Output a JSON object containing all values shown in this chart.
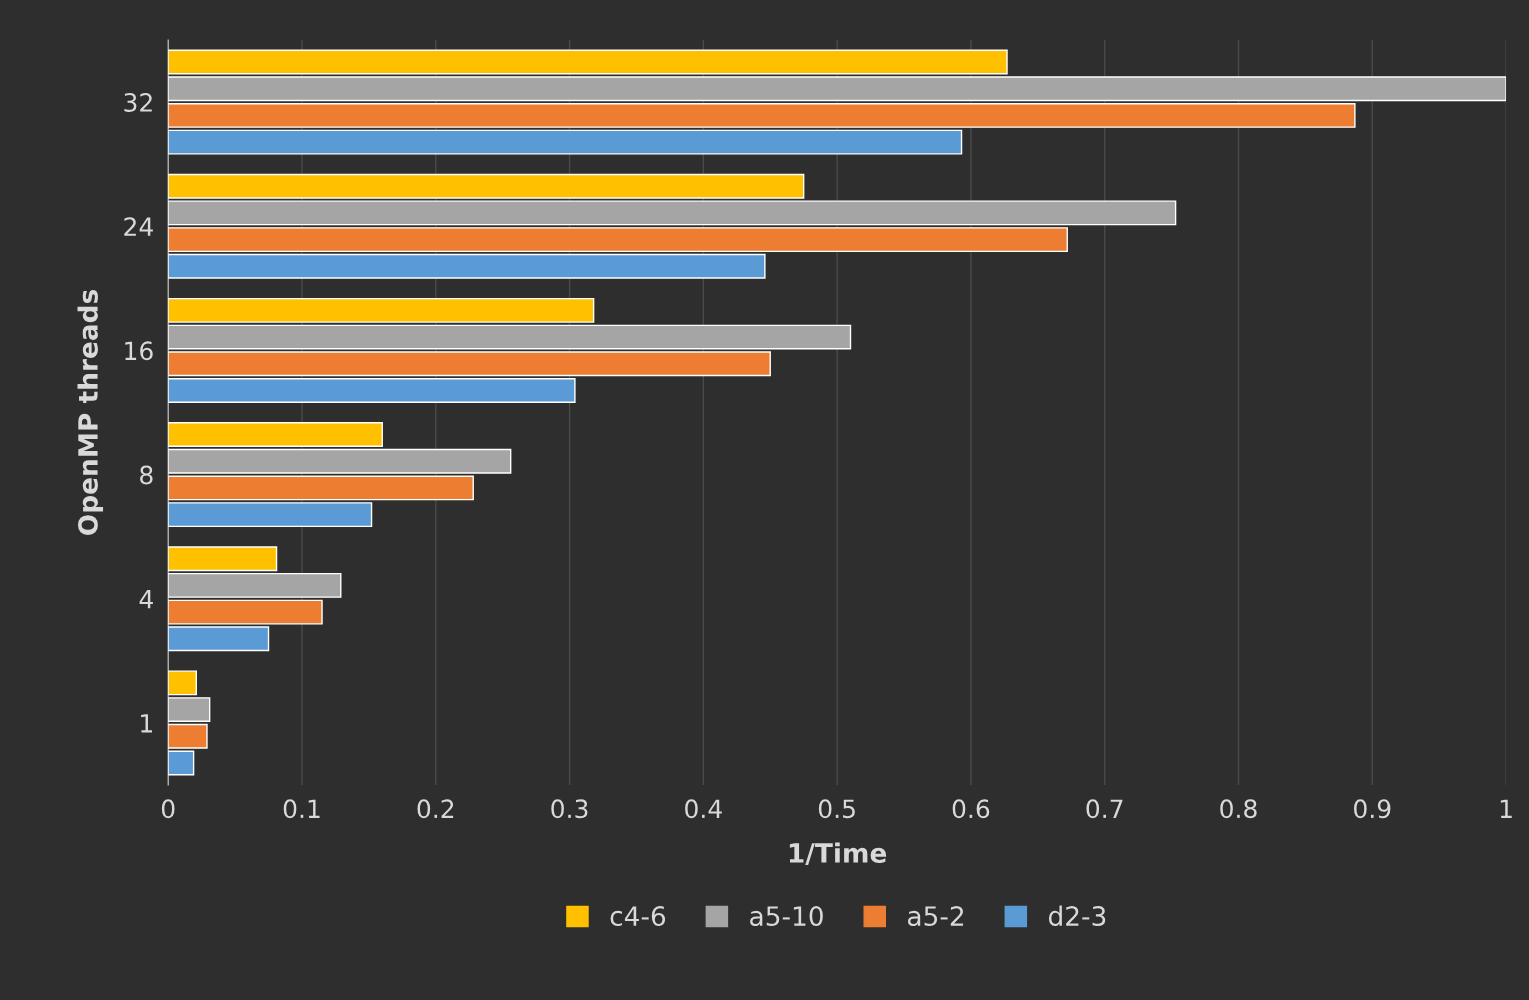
{
  "chart_data": {
    "type": "bar",
    "orientation": "horizontal",
    "xlabel": "1/Time",
    "ylabel": "OpenMP threads",
    "categories": [
      "32",
      "24",
      "16",
      "8",
      "4",
      "1"
    ],
    "series": [
      {
        "name": "c4-6",
        "color": "#ffc000",
        "values": [
          0.627,
          0.475,
          0.318,
          0.16,
          0.081,
          0.021
        ]
      },
      {
        "name": "a5-10",
        "color": "#a5a5a5",
        "values": [
          1.0,
          0.753,
          0.51,
          0.256,
          0.129,
          0.031
        ]
      },
      {
        "name": "a5-2",
        "color": "#ed7d31",
        "values": [
          0.887,
          0.672,
          0.45,
          0.228,
          0.115,
          0.029
        ]
      },
      {
        "name": "d2-3",
        "color": "#5b9bd5",
        "values": [
          0.593,
          0.446,
          0.304,
          0.152,
          0.075,
          0.019
        ]
      }
    ],
    "xlim": [
      0,
      1
    ],
    "xticks": [
      0,
      0.1,
      0.2,
      0.3,
      0.4,
      0.5,
      0.6,
      0.7,
      0.8,
      0.9,
      1
    ],
    "grid": "x",
    "legend": "bottom"
  }
}
